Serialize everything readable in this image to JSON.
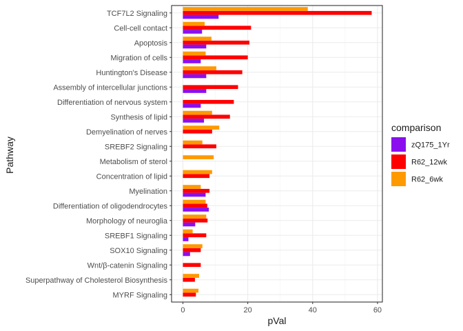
{
  "chart_data": {
    "type": "bar",
    "orientation": "horizontal",
    "xlabel": "pVal",
    "ylabel": "Pathway",
    "xlim": [
      -3.5,
      61.5
    ],
    "xticks": [
      0,
      20,
      40,
      60
    ],
    "grid": true,
    "legend_position": "right",
    "legend_title": "comparison",
    "categories": [
      "TCF7L2 Signaling",
      "Cell-cell contact",
      "Apoptosis",
      "Migration of cells",
      "Huntington's Disease",
      "Assembly of intercellular junctions",
      "Differentiation of nervous system",
      "Synthesis of lipid",
      "Demyelination of nerves",
      "SREBF2 Signaling",
      "Metabolism of sterol",
      "Concentration of lipid",
      "Myelination",
      "Differentiation of oligodendrocytes",
      "Morphology of neuroglia",
      "SREBF1 Signaling",
      "SOX10 Signaling",
      "Wnt/β-catenin Signaling",
      "Superpathway of Cholesterol Biosynthesis",
      "MYRF Signaling"
    ],
    "series": [
      {
        "name": "zQ175_1Yr",
        "color": "#8B0FEE",
        "values": [
          11.0,
          5.9,
          7.2,
          5.5,
          7.2,
          7.2,
          5.5,
          6.5,
          null,
          null,
          null,
          null,
          7.0,
          8.0,
          3.8,
          1.7,
          2.2,
          null,
          null,
          null
        ]
      },
      {
        "name": "R62_12wk",
        "color": "#FF0000",
        "values": [
          58.2,
          21.0,
          20.5,
          20.0,
          18.3,
          17.0,
          15.7,
          14.5,
          9.0,
          10.3,
          null,
          8.2,
          8.2,
          7.5,
          7.6,
          7.2,
          5.5,
          5.5,
          3.7,
          4.0
        ]
      },
      {
        "name": "R62_6wk",
        "color": "#FF9900",
        "values": [
          38.5,
          6.7,
          8.8,
          7.0,
          10.3,
          null,
          null,
          9.0,
          11.2,
          6.0,
          9.5,
          9.0,
          5.5,
          7.0,
          7.2,
          3.0,
          6.0,
          null,
          5.0,
          4.8
        ]
      }
    ]
  }
}
